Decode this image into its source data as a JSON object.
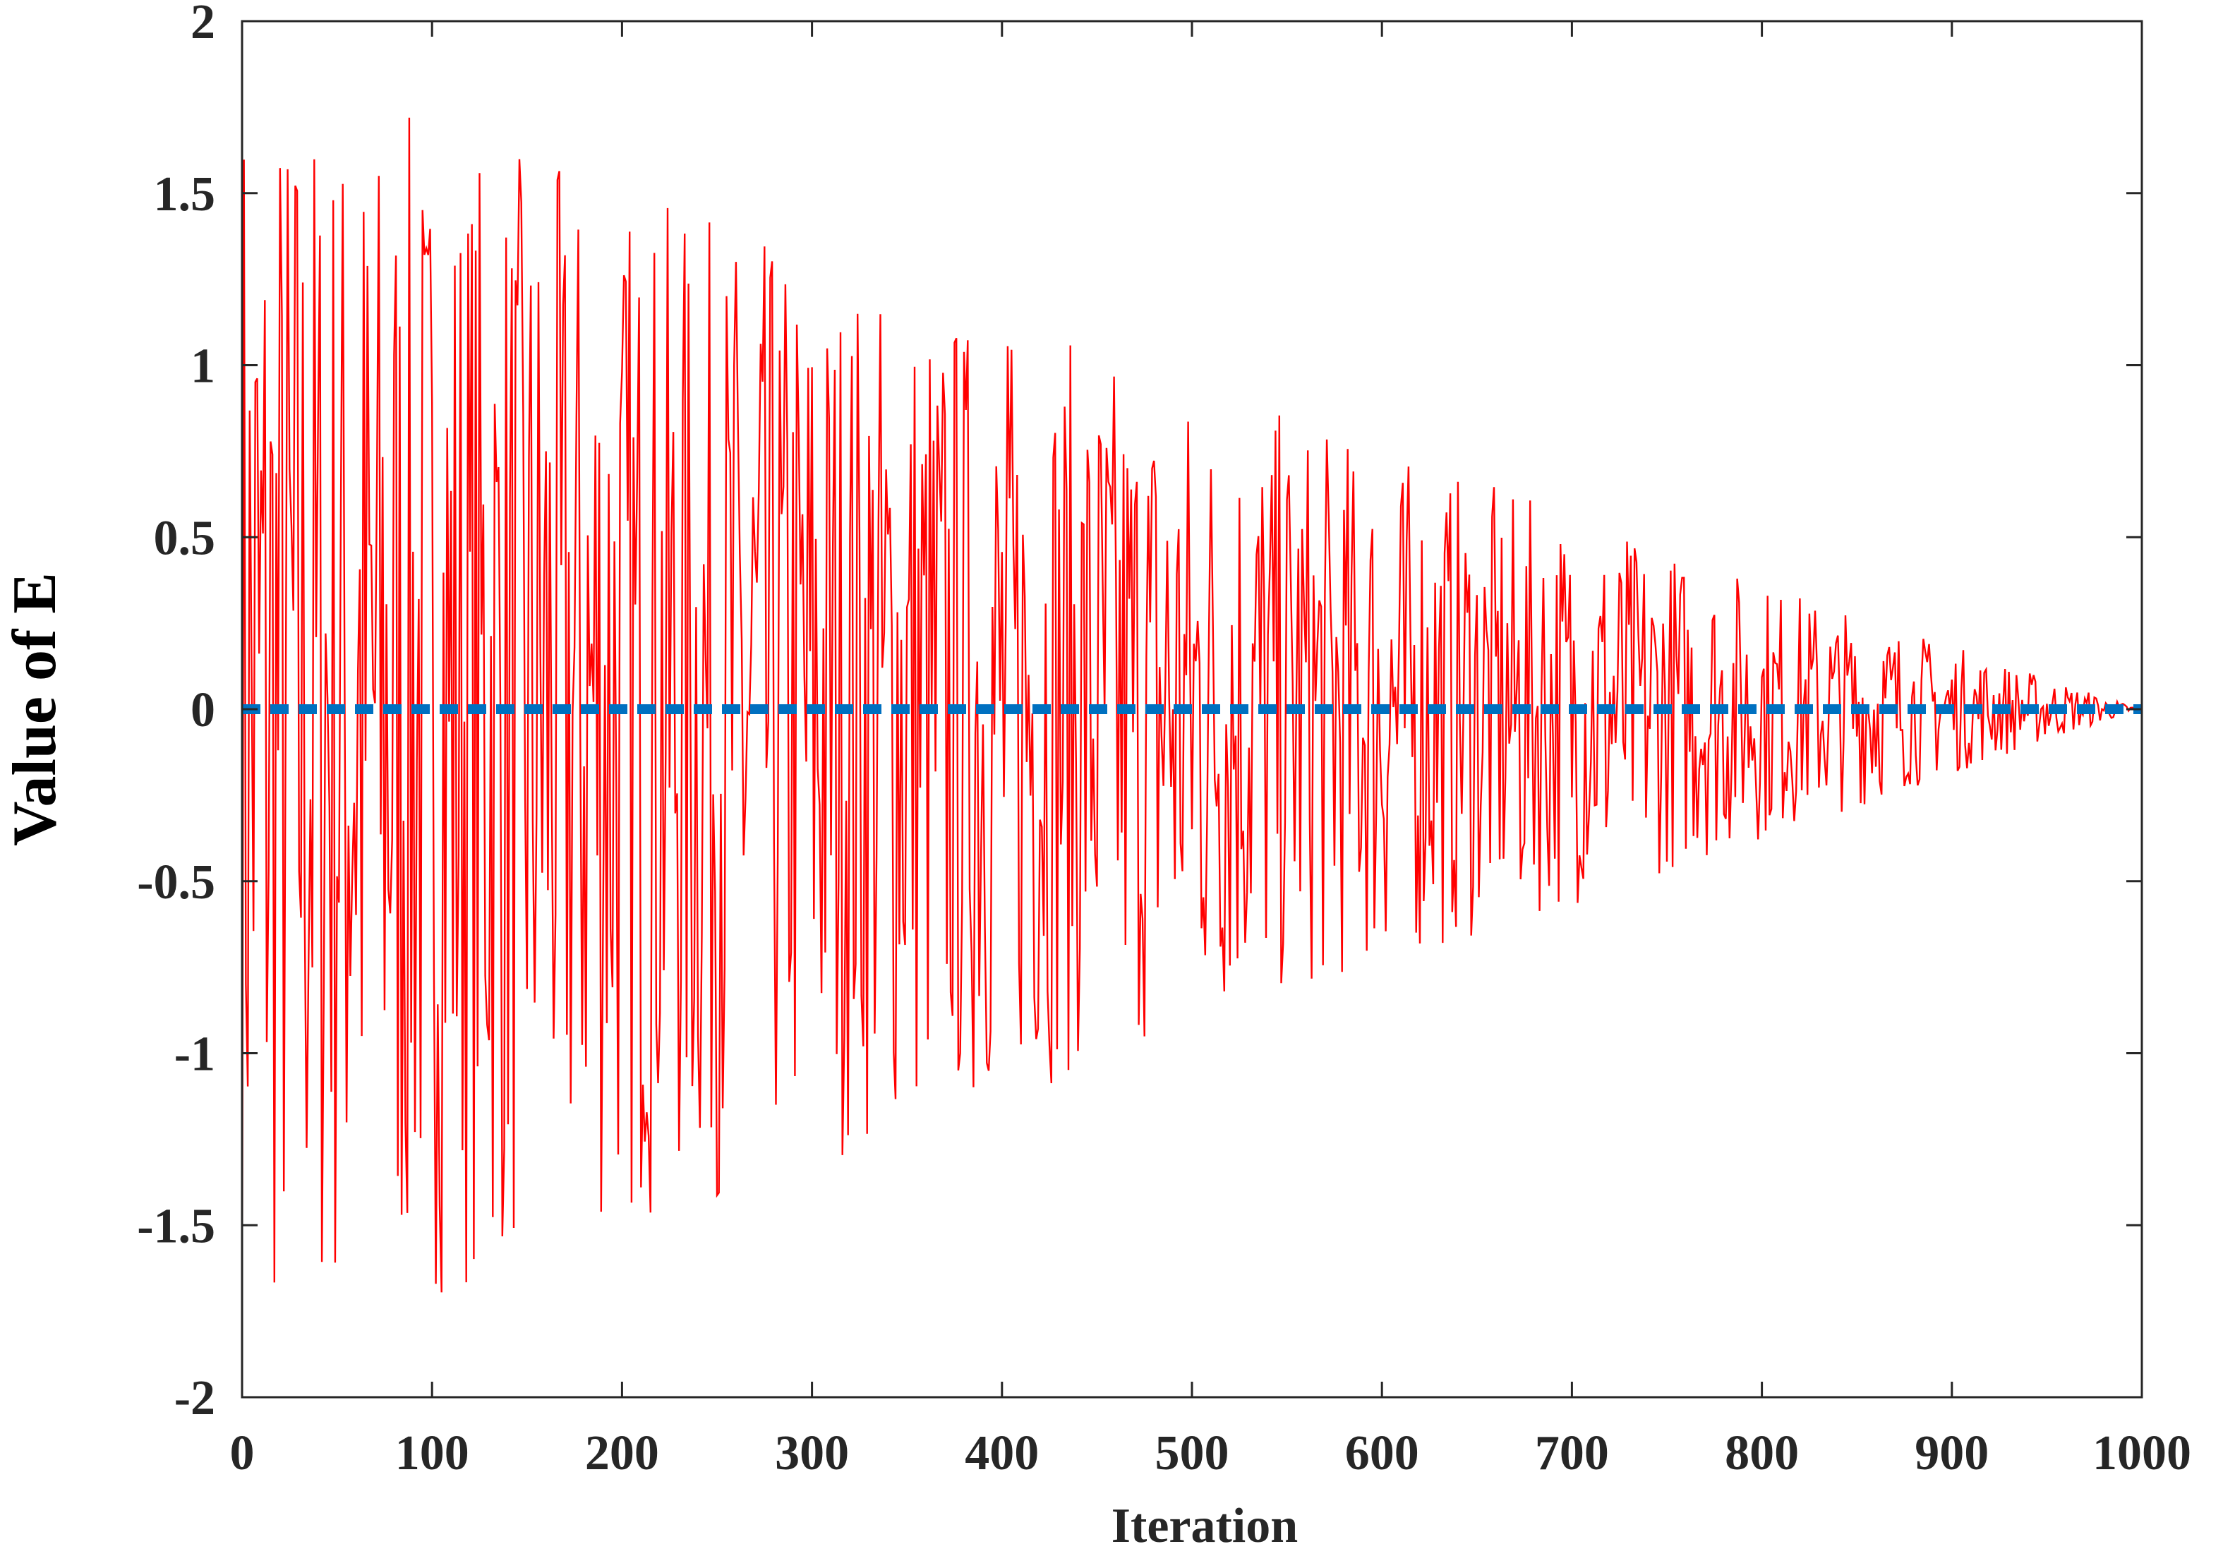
{
  "chart_data": {
    "type": "line",
    "title": "",
    "xlabel": "Iteration",
    "ylabel": "Value of E",
    "xlim": [
      0,
      1000
    ],
    "ylim": [
      -2,
      2
    ],
    "xticks": [
      0,
      100,
      200,
      300,
      400,
      500,
      600,
      700,
      800,
      900,
      1000
    ],
    "yticks": [
      -2,
      -1.5,
      -1,
      -0.5,
      0,
      0.5,
      1,
      1.5,
      2
    ],
    "xtick_labels": [
      "0",
      "100",
      "200",
      "300",
      "400",
      "500",
      "600",
      "700",
      "800",
      "900",
      "1000"
    ],
    "ytick_labels": [
      "-2",
      "-1.5",
      "-1",
      "-0.5",
      "0",
      "0.5",
      "1",
      "1.5",
      "2"
    ],
    "grid": false,
    "legend": "none",
    "series": [
      {
        "color": "#ff0000",
        "style": "solid",
        "description": "escape energy E oscillating with envelope decaying linearly from about 2 at iteration 0 to 0 at iteration 1000",
        "envelope": {
          "start": 1.9,
          "end": 0.0
        },
        "n_points": 1000
      },
      {
        "color": "#0070c0",
        "style": "dashed",
        "x": [
          0,
          1000
        ],
        "y": [
          0,
          0
        ]
      }
    ]
  }
}
